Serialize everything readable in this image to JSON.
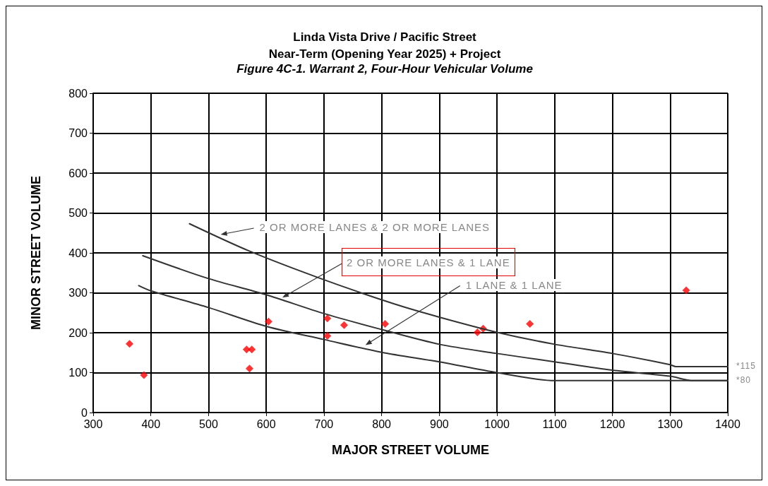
{
  "chart_data": {
    "type": "scatter",
    "title": "Linda Vista Drive / Pacific Street\nNear-Term (Opening Year 2025) + Project",
    "subtitle": "Figure 4C-1. Warrant 2, Four-Hour Vehicular Volume",
    "xlabel": "MAJOR STREET VOLUME",
    "ylabel": "MINOR STREET VOLUME",
    "xlim": [
      300,
      1400
    ],
    "xticks": [
      300,
      400,
      500,
      600,
      700,
      800,
      900,
      1000,
      1100,
      1200,
      1300,
      1400
    ],
    "ylim": [
      0,
      800
    ],
    "yticks": [
      0,
      100,
      200,
      300,
      400,
      500,
      600,
      700,
      800
    ],
    "grid": true,
    "marker": "diamond",
    "series": [
      {
        "color": "#ff0000",
        "x": [
          363,
          388,
          566,
          575,
          571,
          604,
          706,
          706,
          735,
          806,
          966,
          976,
          1057,
          1328
        ],
        "values": [
          172,
          94,
          158,
          158,
          110,
          228,
          236,
          192,
          219,
          222,
          201,
          210,
          222,
          306
        ]
      },
      {
        "type": "line",
        "color": "#333333",
        "marker": "none",
        "x": [
          467,
          570,
          692,
          822,
          900,
          1000,
          1100,
          1200,
          1300,
          1310,
          1400
        ],
        "values": [
          473,
          405,
          337,
          272,
          239,
          201,
          171,
          148,
          120,
          115,
          115
        ]
      },
      {
        "type": "line",
        "color": "#333333",
        "marker": "none",
        "x": [
          386,
          497,
          598,
          700,
          800,
          900,
          1000,
          1100,
          1200,
          1300,
          1340,
          1400
        ],
        "values": [
          393,
          337,
          296,
          248,
          208,
          171,
          148,
          127,
          106,
          91,
          80,
          80
        ]
      },
      {
        "type": "line",
        "color": "#333333",
        "marker": "none",
        "x": [
          379,
          400,
          500,
          600,
          700,
          800,
          900,
          1000,
          1100,
          1400
        ],
        "values": [
          318,
          305,
          263,
          216,
          183,
          151,
          127,
          100,
          80,
          80
        ]
      }
    ],
    "annotations": [
      {
        "text": "2 OR MORE LANES & 2 OR MORE LANES",
        "x": 521,
        "y": 446
      },
      {
        "text": "2 OR MORE LANES & 1 LANE",
        "x": 628,
        "y": 288
      },
      {
        "text": "1 LANE & 1 LANE",
        "x": 772,
        "y": 169
      },
      {
        "text": "*115",
        "x": 1400,
        "y": 115
      },
      {
        "text": "*80",
        "x": 1400,
        "y": 80
      }
    ]
  }
}
